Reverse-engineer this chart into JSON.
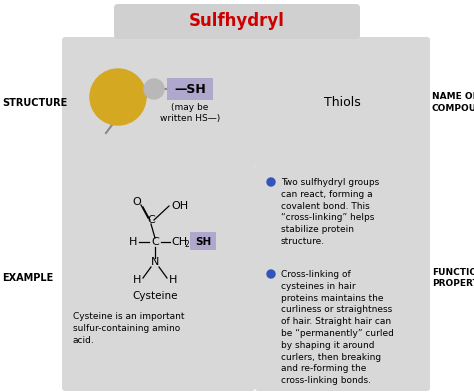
{
  "title": "Sulfhydryl",
  "title_color": "#cc0000",
  "title_bg": "#d0d0d0",
  "bg_color": "#ffffff",
  "cell_bg": "#d8d8d8",
  "structure_label": "STRUCTURE",
  "example_label": "EXAMPLE",
  "name_label": "NAME OF\nCOMPOUND",
  "functional_label": "FUNCTIONAL\nPROPERTIES",
  "sh_label": "—SH",
  "sh_sublabel": "(may be\nwritten HS—)",
  "thiols_label": "Thiols",
  "sh_box_color": "#b0a8cc",
  "cysteine_label": "Cysteine",
  "cysteine_desc": "Cysteine is an important\nsulfur-containing amino\nacid.",
  "bullet1": "Two sulfhydryl groups\ncan react, forming a\ncovalent bond. This\n“cross-linking” helps\nstabilize protein\nstructure.",
  "bullet2": "Cross-linking of\ncysteines in hair\nproteins maintains the\ncurliness or straightness\nof hair. Straight hair can\nbe “permanently” curled\nby shaping it around\ncurlers, then breaking\nand re-forming the\ncross-linking bonds.",
  "bullet_color": "#3355bb",
  "ball_color": "#d4a820",
  "small_ball_color": "#b8b8b8"
}
